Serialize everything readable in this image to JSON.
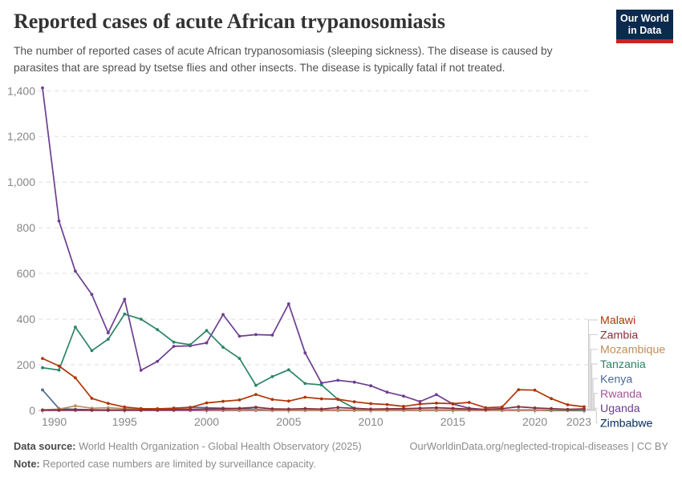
{
  "header": {
    "title": "Reported cases of acute African trypanosomiasis",
    "subtitle": "The number of reported cases of acute African trypanosomiasis (sleeping sickness). The disease is caused by\nparasites that are spread by tsetse flies and other insects. The disease is typically fatal if not treated.",
    "logo_line1": "Our World",
    "logo_line2": "in Data",
    "logo_bg": "#0c2a4e",
    "logo_accent": "#c8251d"
  },
  "chart_data": {
    "type": "line",
    "title": "Reported cases of acute African trypanosomiasis",
    "xlabel": "",
    "ylabel": "",
    "ylim": [
      0,
      1400
    ],
    "grid": true,
    "legend_position": "right",
    "x_start": 1990,
    "x_end": 2023,
    "x_ticks": [
      1990,
      1995,
      2000,
      2005,
      2010,
      2015,
      2020,
      2023
    ],
    "y_ticks": [
      0,
      200,
      400,
      600,
      800,
      1000,
      1200,
      1400
    ],
    "series": [
      {
        "name": "Malawi",
        "color": "#B13507",
        "values": [
          228,
          195,
          143,
          53,
          31,
          15,
          8,
          7,
          10,
          13,
          33,
          40,
          46,
          70,
          48,
          41,
          58,
          51,
          49,
          38,
          30,
          26,
          18,
          28,
          32,
          30,
          35,
          12,
          15,
          91,
          89,
          52,
          25,
          16
        ]
      },
      {
        "name": "Zambia",
        "color": "#883039",
        "values": [
          2,
          2,
          3,
          2,
          2,
          2,
          2,
          3,
          4,
          5,
          6,
          7,
          9,
          14,
          7,
          6,
          8,
          6,
          13,
          9,
          6,
          7,
          8,
          10,
          12,
          9,
          6,
          5,
          8,
          16,
          11,
          8,
          5,
          7
        ]
      },
      {
        "name": "Mozambique",
        "color": "#BC8E5A",
        "values": [
          2,
          6,
          20,
          10,
          12,
          8,
          6,
          8,
          6,
          5,
          4,
          3,
          2,
          2,
          2,
          1,
          1,
          1,
          1,
          1,
          1,
          1,
          1,
          1,
          1,
          1,
          1,
          1,
          1,
          1,
          1,
          2,
          2,
          4
        ]
      },
      {
        "name": "Tanzania",
        "color": "#2C8465",
        "values": [
          187,
          177,
          365,
          262,
          312,
          422,
          400,
          354,
          299,
          288,
          350,
          277,
          228,
          110,
          148,
          178,
          118,
          112,
          48,
          10,
          5,
          3,
          2,
          2,
          2,
          2,
          3,
          2,
          1,
          1,
          1,
          1,
          1,
          2
        ]
      },
      {
        "name": "Kenya",
        "color": "#4C6A9C",
        "values": [
          90,
          8,
          5,
          3,
          2,
          2,
          3,
          2,
          10,
          14,
          12,
          10,
          8,
          5,
          2,
          2,
          1,
          2,
          2,
          1,
          2,
          1,
          2,
          1,
          2,
          1,
          1,
          2,
          1,
          1,
          1,
          1,
          1,
          2
        ]
      },
      {
        "name": "Rwanda",
        "color": "#A2559C",
        "values": [
          0,
          0,
          0,
          0,
          0,
          0,
          0,
          0,
          0,
          0,
          0,
          0,
          0,
          0,
          0,
          0,
          0,
          0,
          0,
          0,
          0,
          0,
          0,
          0,
          0,
          0,
          0,
          0,
          0,
          0,
          0,
          1,
          1,
          2
        ]
      },
      {
        "name": "Uganda",
        "color": "#6D3E91",
        "values": [
          1413,
          830,
          610,
          508,
          340,
          487,
          176,
          215,
          281,
          283,
          296,
          420,
          325,
          332,
          330,
          467,
          252,
          120,
          132,
          124,
          108,
          80,
          63,
          39,
          69,
          28,
          10,
          4,
          2,
          2,
          2,
          1,
          1,
          1
        ]
      },
      {
        "name": "Zimbabwe",
        "color": "#00295B",
        "values": [
          1,
          2,
          1,
          1,
          1,
          1,
          1,
          1,
          2,
          3,
          4,
          3,
          2,
          2,
          1,
          1,
          1,
          1,
          1,
          1,
          1,
          1,
          1,
          1,
          1,
          1,
          1,
          1,
          1,
          1,
          1,
          0,
          0,
          0
        ]
      }
    ]
  },
  "footer": {
    "data_source_label": "Data source:",
    "data_source_text": " World Health Organization - Global Health Observatory (2025)",
    "url_text": "OurWorldinData.org/neglected-tropical-diseases | CC BY",
    "note_label": "Note:",
    "note_text": " Reported case numbers are limited by surveillance capacity."
  }
}
